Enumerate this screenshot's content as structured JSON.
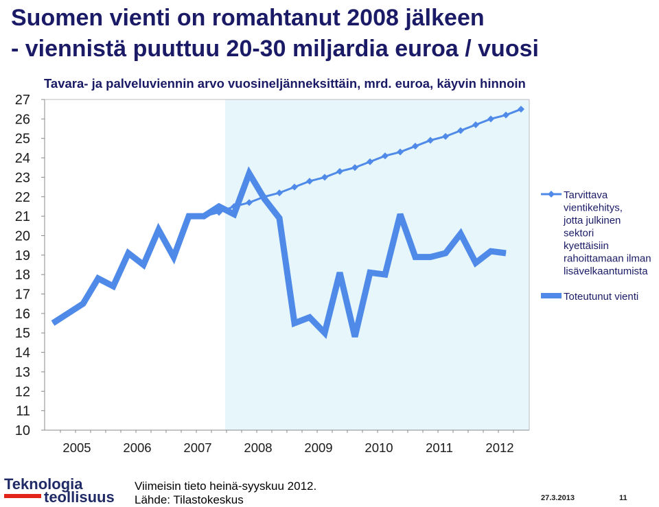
{
  "slide": {
    "title_line1": "Suomen vienti on romahtanut 2008 jälkeen",
    "title_line2": "- viennistä puuttuu 20-30 miljardia euroa / vuosi",
    "source_line1": "Viimeisin tieto heinä-syyskuu 2012.",
    "source_line2": "Lähde: Tilastokeskus",
    "date": "27.3.2013",
    "page_number": "11",
    "logo_line1": "Teknologia",
    "logo_line2": "teollisuus"
  },
  "chart_data": {
    "type": "line",
    "title": "Tavara- ja palveluviennin arvo vuosineljänneksittäin, mrd. euroa, käyvin hinnoin",
    "xlabel": "",
    "ylabel": "",
    "ylim": [
      10,
      27
    ],
    "yticks": [
      10,
      11,
      12,
      13,
      14,
      15,
      16,
      17,
      18,
      19,
      20,
      21,
      22,
      23,
      24,
      25,
      26,
      27
    ],
    "year_labels": [
      "2005",
      "2006",
      "2007",
      "2008",
      "2009",
      "2010",
      "2011",
      "2012"
    ],
    "x_quarters": [
      "2005Q1",
      "2005Q2",
      "2005Q3",
      "2005Q4",
      "2006Q1",
      "2006Q2",
      "2006Q3",
      "2006Q4",
      "2007Q1",
      "2007Q2",
      "2007Q3",
      "2007Q4",
      "2008Q1",
      "2008Q2",
      "2008Q3",
      "2008Q4",
      "2009Q1",
      "2009Q2",
      "2009Q3",
      "2009Q4",
      "2010Q1",
      "2010Q2",
      "2010Q3",
      "2010Q4",
      "2011Q1",
      "2011Q2",
      "2011Q3",
      "2011Q4",
      "2012Q1",
      "2012Q2",
      "2012Q3"
    ],
    "shaded_from": "2008Q1",
    "grid": false,
    "legend_position": "right",
    "series": [
      {
        "name": "Toteutunut vienti",
        "color": "#4f8ae8",
        "style": "thick-line",
        "start_index": 0,
        "values": [
          15.5,
          16.0,
          16.5,
          17.8,
          17.4,
          19.1,
          18.5,
          20.3,
          18.9,
          21.0,
          21.0,
          21.5,
          21.1,
          23.2,
          21.9,
          20.9,
          15.5,
          15.8,
          15.0,
          18.1,
          14.8,
          18.1,
          18.0,
          21.1,
          18.9,
          18.9,
          19.1,
          20.1,
          18.6,
          19.2,
          19.1
        ]
      },
      {
        "name": "Tarvittava vientikehitys, jotta julkinen sektori kyettäisiin rahoittamaan ilman lisävelkaantumista",
        "color": "#4f8ae8",
        "style": "line-diamond",
        "start_index": 10,
        "values": [
          21.0,
          21.2,
          21.5,
          21.7,
          22.0,
          22.2,
          22.5,
          22.8,
          23.0,
          23.3,
          23.5,
          23.8,
          24.1,
          24.3,
          24.6,
          24.9,
          25.1,
          25.4,
          25.7,
          26.0,
          26.2,
          26.5
        ]
      }
    ]
  }
}
